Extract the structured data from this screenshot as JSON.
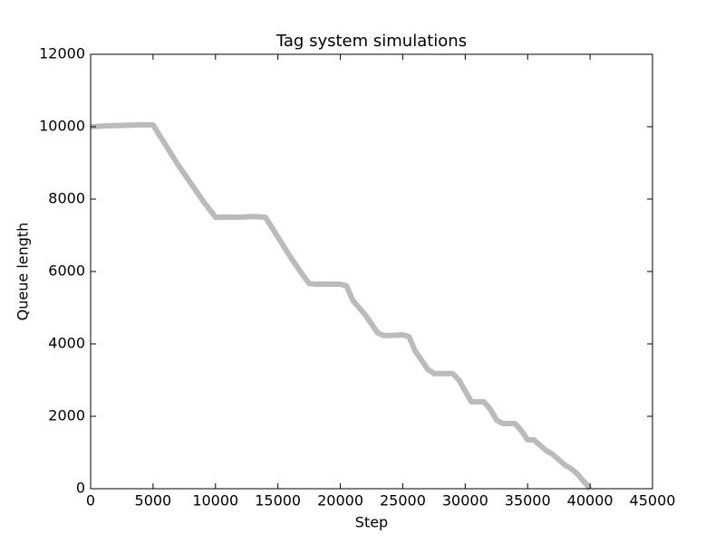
{
  "chart_data": {
    "type": "line",
    "title": "Tag system simulations",
    "x_label": "Step",
    "y_label": "Queue length",
    "x": [
      0,
      1000,
      2000,
      3000,
      4000,
      5000,
      6000,
      7000,
      8000,
      9000,
      10000,
      11000,
      12000,
      13000,
      14000,
      15000,
      16000,
      17000,
      17500,
      18000,
      19000,
      20000,
      20500,
      21000,
      22000,
      23000,
      23500,
      24000,
      25000,
      25500,
      26000,
      27000,
      27500,
      28000,
      29000,
      29500,
      30000,
      30500,
      31000,
      31500,
      32000,
      32500,
      33000,
      34000,
      34500,
      35000,
      35500,
      36000,
      36500,
      37000,
      37500,
      38000,
      38500,
      39000,
      39500,
      40000
    ],
    "series": [
      {
        "color": "#bbbbbb",
        "values": [
          10000,
          10020,
          10030,
          10040,
          10050,
          10050,
          9500,
          8950,
          8450,
          7950,
          7500,
          7500,
          7500,
          7520,
          7500,
          6950,
          6400,
          5900,
          5670,
          5650,
          5650,
          5650,
          5600,
          5200,
          4800,
          4300,
          4230,
          4230,
          4250,
          4200,
          3800,
          3300,
          3180,
          3180,
          3180,
          3000,
          2700,
          2400,
          2400,
          2400,
          2200,
          1900,
          1800,
          1800,
          1600,
          1350,
          1350,
          1200,
          1050,
          950,
          800,
          650,
          550,
          400,
          200,
          0
        ]
      }
    ],
    "xlim": [
      0,
      45000
    ],
    "ylim": [
      0,
      12000
    ],
    "xticks": [
      0,
      5000,
      10000,
      15000,
      20000,
      25000,
      30000,
      35000,
      40000,
      45000
    ],
    "yticks": [
      0,
      2000,
      4000,
      6000,
      8000,
      10000,
      12000
    ]
  }
}
